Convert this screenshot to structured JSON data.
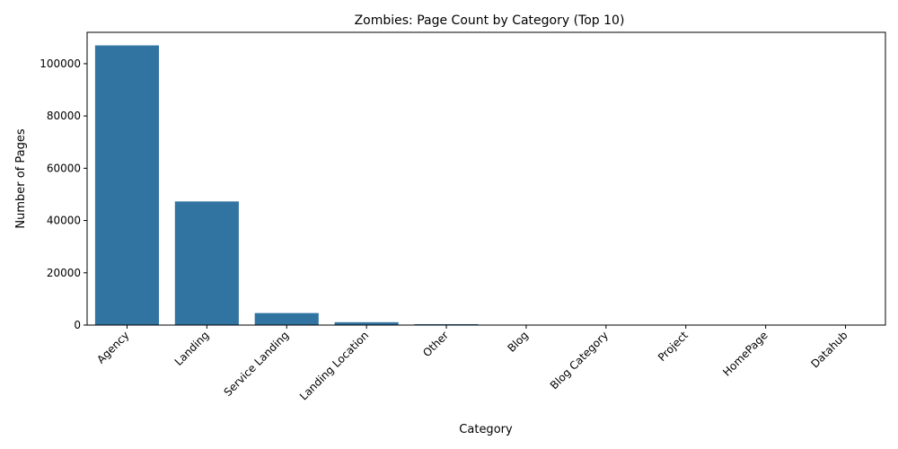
{
  "chart_data": {
    "type": "bar",
    "title": "Zombies: Page Count by Category (Top 10)",
    "xlabel": "Category",
    "ylabel": "Number of Pages",
    "categories": [
      "Agency",
      "Landing",
      "Service Landing",
      "Landing Location",
      "Other",
      "Blog",
      "Blog Category",
      "Project",
      "HomePage",
      "Datahub"
    ],
    "values": [
      107000,
      47300,
      4600,
      1100,
      350,
      40,
      20,
      10,
      5,
      2
    ],
    "ylim": [
      0,
      112000
    ],
    "yticks": [
      0,
      20000,
      40000,
      60000,
      80000,
      100000
    ],
    "grid": false,
    "legend": "none",
    "colors": {
      "bar": "#3274a1",
      "axis": "#000000"
    }
  }
}
